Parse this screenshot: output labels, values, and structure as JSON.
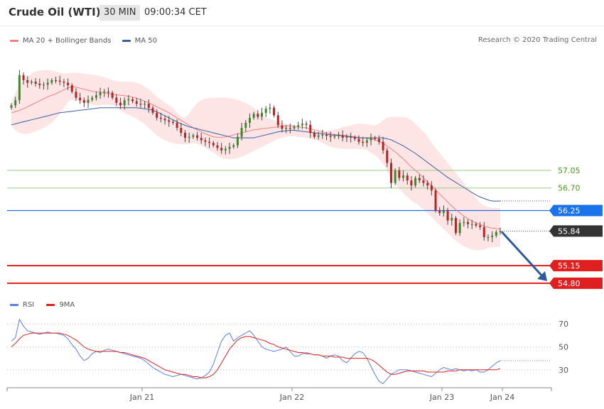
{
  "header": {
    "title": "Crude Oil (WTI)",
    "timeframe": "30 MIN",
    "time": "09:00:34 CET"
  },
  "legend_main": [
    {
      "label": "MA 20 + Bollinger Bands",
      "color": "#f08080"
    },
    {
      "label": "MA 50",
      "color": "#3a5fa0"
    }
  ],
  "credit": "Research © 2020 Trading Central",
  "legend_rsi": [
    {
      "label": "RSI",
      "color": "#5b7fe0"
    },
    {
      "label": "9MA",
      "color": "#e02020"
    }
  ],
  "chart_data": [
    {
      "type": "candlestick",
      "title": "",
      "x_ticks": [
        "Jan 21",
        "Jan 22",
        "Jan 23",
        "Jan 24"
      ],
      "ylim": [
        54.5,
        59.6
      ],
      "levels": [
        {
          "value": 57.05,
          "label": "57.05",
          "kind": "resistance",
          "color": "#9acd80",
          "text_color": "#4a9a1a"
        },
        {
          "value": 56.7,
          "label": "56.70",
          "kind": "resistance",
          "color": "#9acd80",
          "text_color": "#4a9a1a"
        },
        {
          "value": 56.25,
          "label": "56.25",
          "kind": "pivot",
          "color": "#1a73e8"
        },
        {
          "value": 55.84,
          "label": "55.84",
          "kind": "last",
          "color": "#333333"
        },
        {
          "value": 55.15,
          "label": "55.15",
          "kind": "target",
          "color": "#e02020"
        },
        {
          "value": 54.8,
          "label": "54.80",
          "kind": "target",
          "color": "#e02020"
        }
      ],
      "close": [
        58.35,
        58.45,
        58.95,
        58.85,
        58.8,
        58.82,
        58.78,
        58.75,
        58.76,
        58.8,
        58.85,
        58.84,
        58.82,
        58.8,
        58.75,
        58.62,
        58.5,
        58.45,
        58.4,
        58.46,
        58.5,
        58.55,
        58.6,
        58.62,
        58.6,
        58.5,
        58.4,
        58.35,
        58.45,
        58.47,
        58.43,
        58.38,
        58.37,
        58.38,
        58.3,
        58.2,
        58.1,
        58.08,
        58.05,
        58.02,
        58.0,
        57.9,
        57.8,
        57.7,
        57.72,
        57.75,
        57.7,
        57.65,
        57.62,
        57.6,
        57.55,
        57.5,
        57.45,
        57.48,
        57.52,
        57.55,
        57.72,
        57.9,
        58.0,
        58.1,
        58.18,
        58.12,
        58.2,
        58.28,
        58.3,
        58.15,
        57.95,
        57.88,
        57.9,
        57.89,
        57.92,
        57.95,
        57.98,
        57.96,
        57.8,
        57.72,
        57.75,
        57.76,
        57.74,
        57.72,
        57.73,
        57.75,
        57.7,
        57.72,
        57.71,
        57.68,
        57.62,
        57.6,
        57.65,
        57.7,
        57.68,
        57.62,
        57.45,
        57.2,
        56.8,
        57.05,
        56.9,
        56.95,
        56.85,
        56.75,
        56.9,
        56.85,
        56.8,
        56.75,
        56.65,
        56.25,
        56.2,
        56.25,
        56.05,
        56.1,
        55.8,
        56.0,
        56.02,
        55.98,
        55.98,
        55.95,
        55.92,
        55.72,
        55.72,
        55.75,
        55.82,
        55.84
      ],
      "ma20": [
        58.2,
        58.22,
        58.25,
        58.28,
        58.32,
        58.36,
        58.4,
        58.44,
        58.48,
        58.52,
        58.55,
        58.58,
        58.62,
        58.66,
        58.7,
        58.72,
        58.71,
        58.69,
        58.67,
        58.65,
        58.63,
        58.62,
        58.61,
        58.6,
        58.58,
        58.57,
        58.56,
        58.55,
        58.54,
        58.53,
        58.51,
        58.49,
        58.46,
        58.43,
        58.4,
        58.36,
        58.32,
        58.28,
        58.24,
        58.2,
        58.15,
        58.1,
        58.05,
        58.0,
        57.95,
        57.9,
        57.86,
        57.82,
        57.78,
        57.75,
        57.72,
        57.71,
        57.71,
        57.72,
        57.74,
        57.76,
        57.78,
        57.8,
        57.82,
        57.84,
        57.86,
        57.87,
        57.88,
        57.89,
        57.9,
        57.91,
        57.92,
        57.93,
        57.94,
        57.94,
        57.93,
        57.92,
        57.91,
        57.9,
        57.88,
        57.86,
        57.84,
        57.82,
        57.8,
        57.78,
        57.77,
        57.76,
        57.75,
        57.74,
        57.73,
        57.72,
        57.71,
        57.7,
        57.69,
        57.68,
        57.66,
        57.63,
        57.59,
        57.54,
        57.48,
        57.42,
        57.35,
        57.28,
        57.2,
        57.12,
        57.05,
        56.98,
        56.9,
        56.82,
        56.74,
        56.66,
        56.58,
        56.5,
        56.42,
        56.34,
        56.27,
        56.2,
        56.14,
        56.09,
        56.04,
        56.0,
        55.97,
        55.94,
        55.92,
        55.9,
        55.89,
        55.88
      ],
      "bb_upper": [
        58.4,
        58.6,
        58.75,
        58.85,
        58.92,
        58.98,
        59.02,
        59.04,
        59.05,
        59.05,
        59.04,
        59.02,
        59.0,
        58.98,
        58.98,
        59.0,
        59.0,
        58.99,
        58.98,
        58.97,
        58.96,
        58.95,
        58.93,
        58.91,
        58.88,
        58.85,
        58.83,
        58.82,
        58.82,
        58.82,
        58.82,
        58.8,
        58.77,
        58.72,
        58.67,
        58.6,
        58.52,
        58.46,
        58.4,
        58.35,
        58.3,
        58.2,
        58.12,
        58.1,
        58.18,
        58.3,
        58.4,
        58.45,
        58.48,
        58.5,
        58.5,
        58.5,
        58.5,
        58.5,
        58.49,
        58.48,
        58.46,
        58.43,
        58.4,
        58.35,
        58.3,
        58.22,
        58.15,
        58.1,
        58.08,
        58.05,
        58.02,
        58.0,
        57.98,
        57.96,
        57.94,
        57.92,
        57.9,
        57.88,
        57.86,
        57.84,
        57.82,
        57.82,
        57.84,
        57.85,
        57.87,
        57.89,
        57.91,
        57.93,
        57.95,
        57.97,
        57.98,
        57.98,
        57.97,
        57.96,
        57.95,
        57.98,
        58.05,
        58.1,
        58.12,
        58.12,
        58.12,
        58.12,
        58.1,
        58.05,
        57.98,
        57.9,
        57.82,
        57.72,
        57.6,
        57.5,
        57.4,
        57.3,
        57.2,
        57.1,
        57.0,
        56.9,
        56.8,
        56.7,
        56.6,
        56.5,
        56.4,
        56.35,
        56.32,
        56.3,
        56.3,
        56.3
      ],
      "bb_lower": [
        57.95,
        57.85,
        57.8,
        57.78,
        57.78,
        57.8,
        57.83,
        57.86,
        57.9,
        57.95,
        58.0,
        58.08,
        58.18,
        58.3,
        58.42,
        58.46,
        58.44,
        58.42,
        58.4,
        58.38,
        58.36,
        58.35,
        58.35,
        58.36,
        58.36,
        58.35,
        58.3,
        58.25,
        58.2,
        58.16,
        58.12,
        58.08,
        58.03,
        57.97,
        57.9,
        57.82,
        57.75,
        57.7,
        57.65,
        57.62,
        57.6,
        57.58,
        57.57,
        57.57,
        57.58,
        57.6,
        57.58,
        57.55,
        57.5,
        57.45,
        57.4,
        57.35,
        57.3,
        57.28,
        57.27,
        57.28,
        57.3,
        57.33,
        57.36,
        57.4,
        57.44,
        57.48,
        57.52,
        57.56,
        57.6,
        57.64,
        57.68,
        57.7,
        57.72,
        57.73,
        57.73,
        57.72,
        57.71,
        57.7,
        57.68,
        57.66,
        57.64,
        57.6,
        57.56,
        57.52,
        57.5,
        57.49,
        57.48,
        57.48,
        57.48,
        57.48,
        57.48,
        57.47,
        57.46,
        57.4,
        57.35,
        57.28,
        57.18,
        57.05,
        56.9,
        56.78,
        56.68,
        56.6,
        56.52,
        56.45,
        56.4,
        56.34,
        56.27,
        56.2,
        56.12,
        56.04,
        55.96,
        55.88,
        55.8,
        55.72,
        55.65,
        55.59,
        55.54,
        55.5,
        55.47,
        55.46,
        55.46,
        55.47,
        55.5,
        55.52,
        55.53,
        55.53
      ],
      "ma50": [
        57.96,
        57.98,
        58.0,
        58.02,
        58.04,
        58.06,
        58.08,
        58.1,
        58.12,
        58.14,
        58.16,
        58.18,
        58.2,
        58.21,
        58.22,
        58.23,
        58.24,
        58.25,
        58.26,
        58.27,
        58.28,
        58.29,
        58.3,
        58.3,
        58.3,
        58.3,
        58.3,
        58.3,
        58.3,
        58.3,
        58.3,
        58.3,
        58.29,
        58.28,
        58.27,
        58.25,
        58.22,
        58.18,
        58.14,
        58.1,
        58.06,
        58.02,
        57.98,
        57.95,
        57.92,
        57.9,
        57.88,
        57.86,
        57.84,
        57.82,
        57.8,
        57.78,
        57.76,
        57.74,
        57.72,
        57.7,
        57.7,
        57.7,
        57.7,
        57.7,
        57.7,
        57.72,
        57.74,
        57.76,
        57.78,
        57.8,
        57.82,
        57.83,
        57.84,
        57.85,
        57.85,
        57.84,
        57.83,
        57.82,
        57.81,
        57.8,
        57.79,
        57.78,
        57.77,
        57.76,
        57.75,
        57.75,
        57.74,
        57.73,
        57.72,
        57.71,
        57.7,
        57.7,
        57.7,
        57.7,
        57.7,
        57.7,
        57.7,
        57.68,
        57.66,
        57.62,
        57.58,
        57.54,
        57.49,
        57.44,
        57.39,
        57.33,
        57.27,
        57.21,
        57.15,
        57.09,
        57.03,
        56.97,
        56.91,
        56.86,
        56.81,
        56.76,
        56.71,
        56.66,
        56.61,
        56.56,
        56.52,
        56.49,
        56.46,
        56.44,
        56.44,
        56.44
      ],
      "projection": {
        "from": 55.84,
        "to": 54.8
      }
    },
    {
      "type": "line",
      "title": "",
      "ylim": [
        15,
        80
      ],
      "yticks": [
        30,
        50,
        70
      ],
      "series": [
        {
          "name": "RSI",
          "color": "#5b7fe0",
          "values": [
            55,
            58,
            74,
            68,
            64,
            63,
            62,
            61,
            62,
            63,
            62,
            62,
            61,
            60,
            57,
            52,
            48,
            42,
            38,
            40,
            44,
            46,
            45,
            47,
            48,
            47,
            46,
            45,
            44,
            43,
            42,
            41,
            40,
            38,
            35,
            32,
            30,
            28,
            26,
            25,
            24,
            25,
            26,
            25,
            24,
            23,
            22,
            23,
            25,
            28,
            35,
            45,
            55,
            60,
            62,
            55,
            58,
            60,
            62,
            64,
            60,
            55,
            50,
            48,
            47,
            46,
            47,
            48,
            50,
            46,
            42,
            42,
            44,
            45,
            44,
            43,
            43,
            42,
            40,
            42,
            43,
            42,
            38,
            36,
            40,
            44,
            46,
            45,
            40,
            33,
            26,
            20,
            18,
            22,
            26,
            28,
            30,
            30,
            30,
            29,
            28,
            27,
            26,
            25,
            24,
            27,
            30,
            32,
            31,
            30,
            31,
            30,
            29,
            30,
            29,
            30,
            28,
            28,
            30,
            33,
            36,
            38
          ]
        },
        {
          "name": "9MA",
          "color": "#e02020",
          "values": [
            50,
            53,
            57,
            60,
            61,
            62,
            62,
            62,
            62,
            62,
            62,
            62,
            62,
            61,
            60,
            58,
            56,
            53,
            50,
            48,
            47,
            46,
            46,
            46,
            46,
            46,
            46,
            45,
            45,
            44,
            43,
            42,
            41,
            40,
            38,
            36,
            34,
            32,
            30,
            29,
            28,
            27,
            26,
            26,
            25,
            24,
            24,
            23,
            23,
            24,
            26,
            30,
            36,
            42,
            48,
            52,
            56,
            58,
            59,
            59,
            58,
            57,
            56,
            55,
            53,
            52,
            50,
            49,
            48,
            47,
            46,
            45,
            45,
            44,
            44,
            43,
            43,
            42,
            42,
            42,
            41,
            41,
            41,
            40,
            40,
            40,
            40,
            40,
            40,
            39,
            37,
            34,
            31,
            28,
            26,
            26,
            27,
            28,
            29,
            29,
            29,
            29,
            29,
            28,
            28,
            28,
            28,
            28,
            29,
            29,
            29,
            30,
            30,
            30,
            30,
            30,
            30,
            30,
            30,
            30,
            30,
            31
          ]
        }
      ]
    }
  ]
}
